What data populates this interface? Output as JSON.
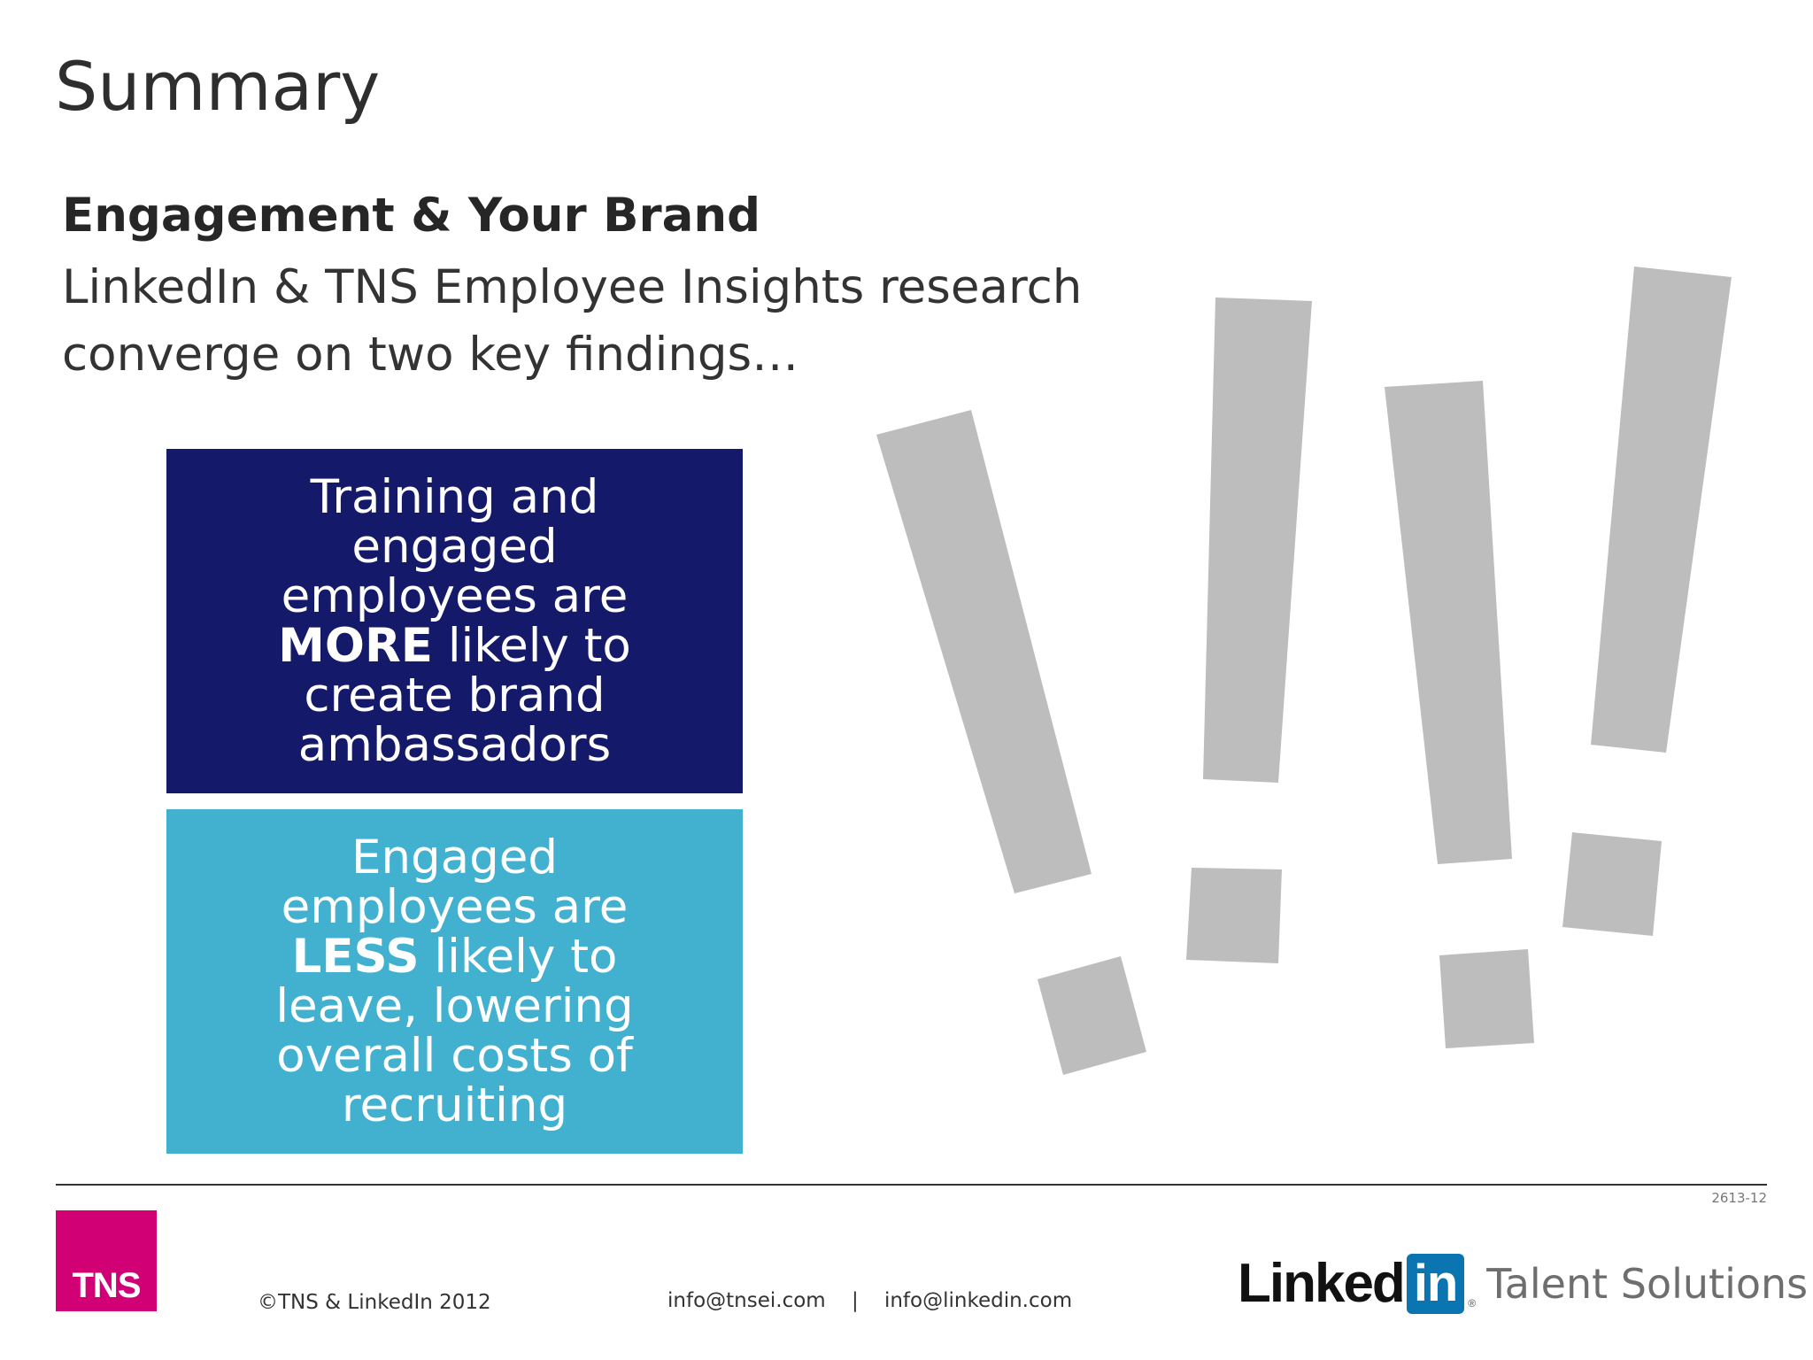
{
  "slide": {
    "title": "Summary",
    "subhead": "Engagement & Your Brand",
    "intro": "LinkedIn & TNS Employee Insights research converge on two key findings…"
  },
  "findings": [
    {
      "before": "Training and engaged employees are",
      "emphasis": "MORE",
      "after": "likely to create brand ambassadors",
      "color": "#141a69"
    },
    {
      "before": "Engaged employees are",
      "emphasis": "LESS",
      "after": "likely to leave, lowering overall costs of recruiting",
      "color": "#42b0cf"
    }
  ],
  "decor": {
    "exclamation_color": "#bdbdbd",
    "icon": "exclamation-marks-icon"
  },
  "footer": {
    "slide_code": "2613-12",
    "tns_logo": "TNS",
    "copyright": "©TNS & LinkedIn 2012",
    "email_tns": "info@tnsei.com",
    "separator": "|",
    "email_linkedin": "info@linkedin.com",
    "linkedin_word": "Linked",
    "linkedin_in": "in",
    "linkedin_reg": "®",
    "linkedin_tagline": "Talent Solutions"
  }
}
